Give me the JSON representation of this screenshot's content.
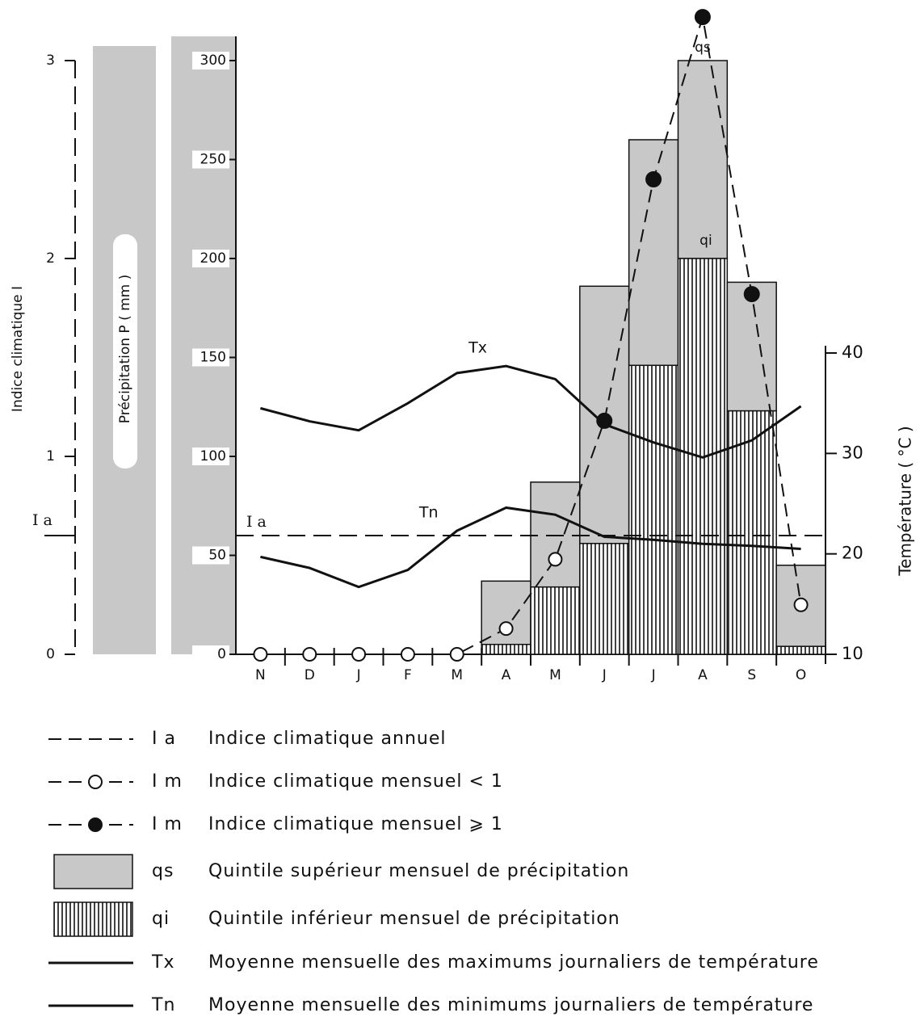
{
  "chart_data": {
    "type": "climate-diagram",
    "categories": [
      "N",
      "D",
      "J",
      "F",
      "M",
      "A",
      "M",
      "J",
      "J",
      "A",
      "S",
      "O"
    ],
    "y_label": "Précipitation P ( mm )",
    "ylim": [
      0,
      300
    ],
    "yticks": [
      0,
      50,
      100,
      150,
      200,
      250,
      300
    ],
    "index_label": "Indice climatique I",
    "index_lim": [
      0,
      3
    ],
    "index_ticks": [
      0,
      1,
      2,
      3
    ],
    "y2_label": "Température ( °C )",
    "y2lim": [
      10,
      40
    ],
    "y2ticks": [
      10,
      20,
      30,
      40
    ],
    "series": [
      {
        "name": "qs",
        "color": "#c8c8c8",
        "values": [
          0,
          0,
          0,
          0,
          0,
          37,
          87,
          186,
          260,
          300,
          188,
          45
        ]
      },
      {
        "name": "qi",
        "color": "#000000",
        "values": [
          0,
          0,
          0,
          0,
          0,
          5,
          34,
          56,
          146,
          200,
          123,
          4
        ]
      },
      {
        "name": "Tx",
        "color": "#111111",
        "axis": "y2",
        "values": [
          34.5,
          33.2,
          32.3,
          35,
          38,
          38.7,
          37.4,
          32.9,
          31.1,
          29.6,
          31.3,
          34.7
        ]
      },
      {
        "name": "Tn",
        "color": "#111111",
        "axis": "y2",
        "values": [
          19.7,
          18.6,
          16.7,
          18.4,
          22.3,
          24.6,
          23.9,
          21.7,
          21.4,
          21,
          20.8,
          20.5
        ]
      },
      {
        "name": "I m",
        "color": "#111111",
        "threshold": 1,
        "values": [
          0,
          0,
          0,
          0,
          0,
          0.13,
          0.48,
          1.18,
          2.4,
          3.22,
          1.82,
          0.25
        ]
      }
    ],
    "ia": {
      "label": "I a",
      "value": 0.6
    },
    "legend": [
      {
        "code": "I a",
        "text": "Indice climatique annuel"
      },
      {
        "code": "I m",
        "text": "Indice climatique mensuel < 1"
      },
      {
        "code": "I m",
        "text": "Indice climatique mensuel ⩾ 1"
      },
      {
        "code": "qs",
        "text": "Quintile supérieur mensuel de précipitation"
      },
      {
        "code": "qi",
        "text": "Quintile inférieur mensuel de précipitation"
      },
      {
        "code": "Tx",
        "text": "Moyenne mensuelle des maximums journaliers de température"
      },
      {
        "code": "Tn",
        "text": "Moyenne mensuelle des minimums journaliers de température"
      }
    ]
  }
}
